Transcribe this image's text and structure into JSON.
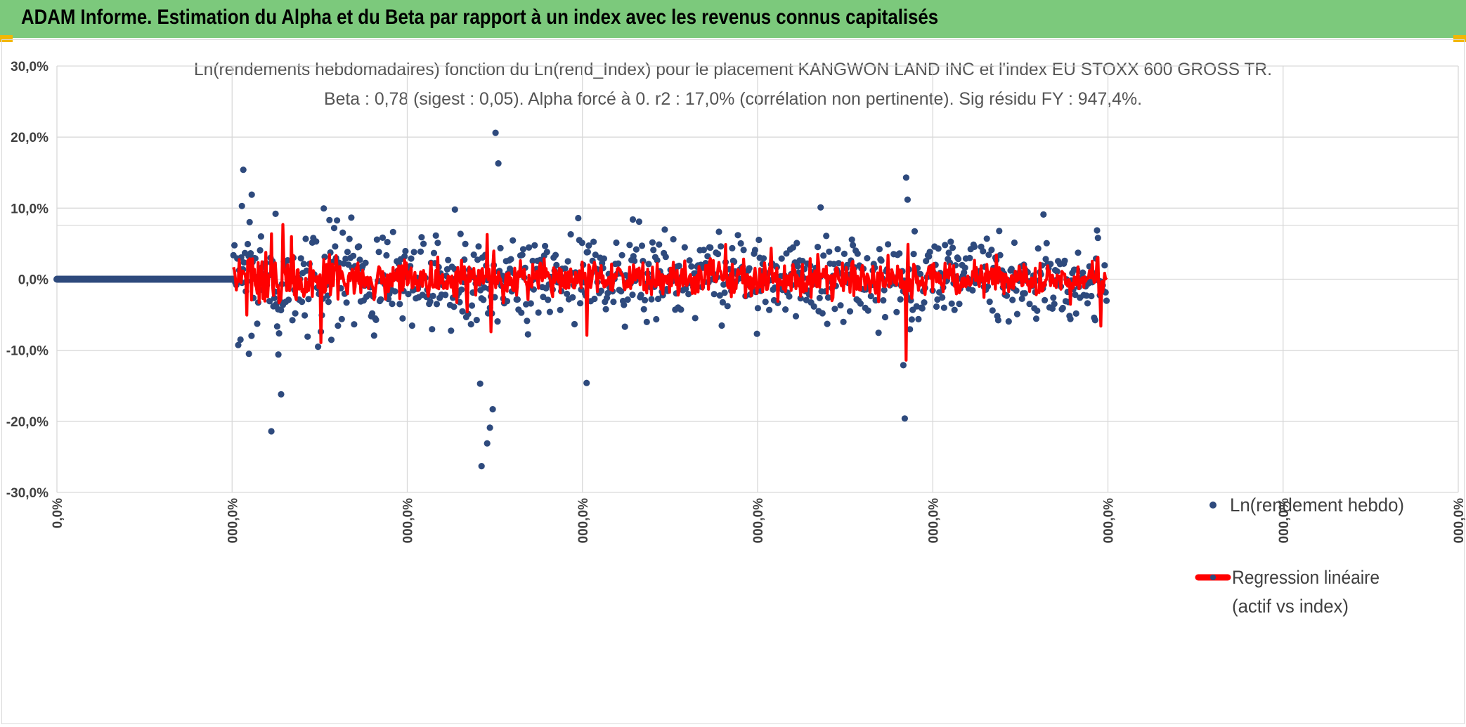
{
  "header": {
    "title": "ADAM Informe. Estimation du Alpha et du Beta par rapport à un index avec les revenus connus capitalisés",
    "background": "#7cc97c",
    "corner_accent": "#f2b705"
  },
  "chart_data": {
    "type": "scatter",
    "title_line1": "Ln(rendements hebdomadaires) fonction du Ln(rend_Index) pour le placement KANGWON LAND INC et l'index EU STOXX 600 GROSS TR.",
    "title_line2": "Beta : 0,78 (sigest : 0,05). Alpha forcé à 0. r2 : 17,0% (corrélation non pertinente). Sig résidu FY : 947,4%.",
    "ylim": [
      -30,
      30
    ],
    "y_ticks": [
      30,
      20,
      10,
      0,
      -10,
      -20,
      -30
    ],
    "y_tick_labels": [
      "30,0%",
      "20,0%",
      "10,0%",
      "0,0%",
      "-10,0%",
      "-20,0%",
      "-30,0%"
    ],
    "x_tick_labels": [
      "0,0%",
      "000,0%",
      "000,0%",
      "000,0%",
      "000,0%",
      "000,0%",
      "000,0%",
      "000,0%",
      "000,0%"
    ],
    "grid": true,
    "legend_position": "right",
    "series": [
      {
        "name": "Ln(rendement hebdo)",
        "kind": "points",
        "color": "#2e4a7d",
        "n_points": 1150,
        "flat_segment": {
          "x_range": [
            0,
            0.126
          ],
          "y": 0
        },
        "spread_x_range": [
          0.126,
          0.749
        ],
        "notable_points": [
          {
            "x": 0.133,
            "y": 15.4
          },
          {
            "x": 0.132,
            "y": 10.3
          },
          {
            "x": 0.139,
            "y": 11.9
          },
          {
            "x": 0.131,
            "y": -8.5
          },
          {
            "x": 0.137,
            "y": -10.5
          },
          {
            "x": 0.153,
            "y": -21.4
          },
          {
            "x": 0.16,
            "y": -16.2
          },
          {
            "x": 0.158,
            "y": -10.6
          },
          {
            "x": 0.156,
            "y": 9.2
          },
          {
            "x": 0.313,
            "y": 20.6
          },
          {
            "x": 0.315,
            "y": 16.3
          },
          {
            "x": 0.303,
            "y": -26.3
          },
          {
            "x": 0.307,
            "y": -23.1
          },
          {
            "x": 0.309,
            "y": -20.9
          },
          {
            "x": 0.311,
            "y": -18.3
          },
          {
            "x": 0.302,
            "y": -14.7
          },
          {
            "x": 0.378,
            "y": -14.6
          },
          {
            "x": 0.545,
            "y": 10.1
          },
          {
            "x": 0.606,
            "y": 14.3
          },
          {
            "x": 0.607,
            "y": 11.2
          },
          {
            "x": 0.604,
            "y": -12.1
          },
          {
            "x": 0.605,
            "y": -19.6
          },
          {
            "x": 0.704,
            "y": 9.1
          },
          {
            "x": 0.284,
            "y": 9.8
          },
          {
            "x": 0.372,
            "y": 8.6
          },
          {
            "x": 0.411,
            "y": 8.4
          }
        ]
      },
      {
        "name": "Regression linéaire (actif vs index)",
        "kind": "line",
        "color": "#ff0000",
        "beta": 0.78,
        "x_range": [
          0.126,
          0.749
        ],
        "notable_points": [
          {
            "x": 0.153,
            "y": 6.4
          },
          {
            "x": 0.161,
            "y": 7.7
          },
          {
            "x": 0.307,
            "y": 6.3
          },
          {
            "x": 0.31,
            "y": -7.4
          },
          {
            "x": 0.378,
            "y": -7.9
          },
          {
            "x": 0.606,
            "y": -11.4
          },
          {
            "x": 0.607,
            "y": 4.9
          },
          {
            "x": 0.745,
            "y": -6.6
          }
        ]
      }
    ]
  },
  "legend": {
    "scatter_label": "Ln(rendement hebdo)",
    "line_label_1": "Regression linéaire",
    "line_label_2": "(actif vs index)"
  }
}
